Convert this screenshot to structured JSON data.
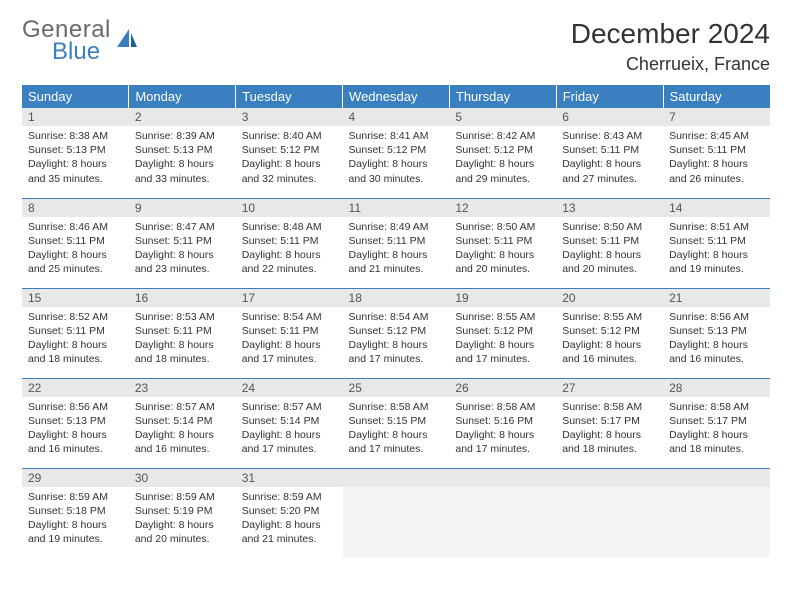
{
  "logo": {
    "word1": "General",
    "word2": "Blue"
  },
  "header": {
    "month": "December 2024",
    "location": "Cherrueix, France"
  },
  "colors": {
    "accent": "#3a7fbf",
    "header_bg": "#3a7fbf",
    "header_text": "#ffffff",
    "daynum_bg": "#e8e8e8",
    "border": "#3a7fbf",
    "logo_gray": "#6a6a6a"
  },
  "weekdays": [
    "Sunday",
    "Monday",
    "Tuesday",
    "Wednesday",
    "Thursday",
    "Friday",
    "Saturday"
  ],
  "weeks": [
    [
      {
        "n": "1",
        "sr": "Sunrise: 8:38 AM",
        "ss": "Sunset: 5:13 PM",
        "d1": "Daylight: 8 hours",
        "d2": "and 35 minutes."
      },
      {
        "n": "2",
        "sr": "Sunrise: 8:39 AM",
        "ss": "Sunset: 5:13 PM",
        "d1": "Daylight: 8 hours",
        "d2": "and 33 minutes."
      },
      {
        "n": "3",
        "sr": "Sunrise: 8:40 AM",
        "ss": "Sunset: 5:12 PM",
        "d1": "Daylight: 8 hours",
        "d2": "and 32 minutes."
      },
      {
        "n": "4",
        "sr": "Sunrise: 8:41 AM",
        "ss": "Sunset: 5:12 PM",
        "d1": "Daylight: 8 hours",
        "d2": "and 30 minutes."
      },
      {
        "n": "5",
        "sr": "Sunrise: 8:42 AM",
        "ss": "Sunset: 5:12 PM",
        "d1": "Daylight: 8 hours",
        "d2": "and 29 minutes."
      },
      {
        "n": "6",
        "sr": "Sunrise: 8:43 AM",
        "ss": "Sunset: 5:11 PM",
        "d1": "Daylight: 8 hours",
        "d2": "and 27 minutes."
      },
      {
        "n": "7",
        "sr": "Sunrise: 8:45 AM",
        "ss": "Sunset: 5:11 PM",
        "d1": "Daylight: 8 hours",
        "d2": "and 26 minutes."
      }
    ],
    [
      {
        "n": "8",
        "sr": "Sunrise: 8:46 AM",
        "ss": "Sunset: 5:11 PM",
        "d1": "Daylight: 8 hours",
        "d2": "and 25 minutes."
      },
      {
        "n": "9",
        "sr": "Sunrise: 8:47 AM",
        "ss": "Sunset: 5:11 PM",
        "d1": "Daylight: 8 hours",
        "d2": "and 23 minutes."
      },
      {
        "n": "10",
        "sr": "Sunrise: 8:48 AM",
        "ss": "Sunset: 5:11 PM",
        "d1": "Daylight: 8 hours",
        "d2": "and 22 minutes."
      },
      {
        "n": "11",
        "sr": "Sunrise: 8:49 AM",
        "ss": "Sunset: 5:11 PM",
        "d1": "Daylight: 8 hours",
        "d2": "and 21 minutes."
      },
      {
        "n": "12",
        "sr": "Sunrise: 8:50 AM",
        "ss": "Sunset: 5:11 PM",
        "d1": "Daylight: 8 hours",
        "d2": "and 20 minutes."
      },
      {
        "n": "13",
        "sr": "Sunrise: 8:50 AM",
        "ss": "Sunset: 5:11 PM",
        "d1": "Daylight: 8 hours",
        "d2": "and 20 minutes."
      },
      {
        "n": "14",
        "sr": "Sunrise: 8:51 AM",
        "ss": "Sunset: 5:11 PM",
        "d1": "Daylight: 8 hours",
        "d2": "and 19 minutes."
      }
    ],
    [
      {
        "n": "15",
        "sr": "Sunrise: 8:52 AM",
        "ss": "Sunset: 5:11 PM",
        "d1": "Daylight: 8 hours",
        "d2": "and 18 minutes."
      },
      {
        "n": "16",
        "sr": "Sunrise: 8:53 AM",
        "ss": "Sunset: 5:11 PM",
        "d1": "Daylight: 8 hours",
        "d2": "and 18 minutes."
      },
      {
        "n": "17",
        "sr": "Sunrise: 8:54 AM",
        "ss": "Sunset: 5:11 PM",
        "d1": "Daylight: 8 hours",
        "d2": "and 17 minutes."
      },
      {
        "n": "18",
        "sr": "Sunrise: 8:54 AM",
        "ss": "Sunset: 5:12 PM",
        "d1": "Daylight: 8 hours",
        "d2": "and 17 minutes."
      },
      {
        "n": "19",
        "sr": "Sunrise: 8:55 AM",
        "ss": "Sunset: 5:12 PM",
        "d1": "Daylight: 8 hours",
        "d2": "and 17 minutes."
      },
      {
        "n": "20",
        "sr": "Sunrise: 8:55 AM",
        "ss": "Sunset: 5:12 PM",
        "d1": "Daylight: 8 hours",
        "d2": "and 16 minutes."
      },
      {
        "n": "21",
        "sr": "Sunrise: 8:56 AM",
        "ss": "Sunset: 5:13 PM",
        "d1": "Daylight: 8 hours",
        "d2": "and 16 minutes."
      }
    ],
    [
      {
        "n": "22",
        "sr": "Sunrise: 8:56 AM",
        "ss": "Sunset: 5:13 PM",
        "d1": "Daylight: 8 hours",
        "d2": "and 16 minutes."
      },
      {
        "n": "23",
        "sr": "Sunrise: 8:57 AM",
        "ss": "Sunset: 5:14 PM",
        "d1": "Daylight: 8 hours",
        "d2": "and 16 minutes."
      },
      {
        "n": "24",
        "sr": "Sunrise: 8:57 AM",
        "ss": "Sunset: 5:14 PM",
        "d1": "Daylight: 8 hours",
        "d2": "and 17 minutes."
      },
      {
        "n": "25",
        "sr": "Sunrise: 8:58 AM",
        "ss": "Sunset: 5:15 PM",
        "d1": "Daylight: 8 hours",
        "d2": "and 17 minutes."
      },
      {
        "n": "26",
        "sr": "Sunrise: 8:58 AM",
        "ss": "Sunset: 5:16 PM",
        "d1": "Daylight: 8 hours",
        "d2": "and 17 minutes."
      },
      {
        "n": "27",
        "sr": "Sunrise: 8:58 AM",
        "ss": "Sunset: 5:17 PM",
        "d1": "Daylight: 8 hours",
        "d2": "and 18 minutes."
      },
      {
        "n": "28",
        "sr": "Sunrise: 8:58 AM",
        "ss": "Sunset: 5:17 PM",
        "d1": "Daylight: 8 hours",
        "d2": "and 18 minutes."
      }
    ],
    [
      {
        "n": "29",
        "sr": "Sunrise: 8:59 AM",
        "ss": "Sunset: 5:18 PM",
        "d1": "Daylight: 8 hours",
        "d2": "and 19 minutes."
      },
      {
        "n": "30",
        "sr": "Sunrise: 8:59 AM",
        "ss": "Sunset: 5:19 PM",
        "d1": "Daylight: 8 hours",
        "d2": "and 20 minutes."
      },
      {
        "n": "31",
        "sr": "Sunrise: 8:59 AM",
        "ss": "Sunset: 5:20 PM",
        "d1": "Daylight: 8 hours",
        "d2": "and 21 minutes."
      },
      null,
      null,
      null,
      null
    ]
  ]
}
